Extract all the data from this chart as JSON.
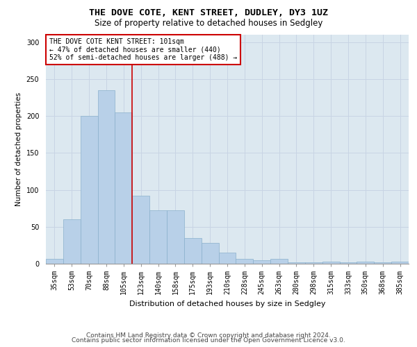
{
  "title": "THE DOVE COTE, KENT STREET, DUDLEY, DY3 1UZ",
  "subtitle": "Size of property relative to detached houses in Sedgley",
  "xlabel": "Distribution of detached houses by size in Sedgley",
  "ylabel": "Number of detached properties",
  "categories": [
    "35sqm",
    "53sqm",
    "70sqm",
    "88sqm",
    "105sqm",
    "123sqm",
    "140sqm",
    "158sqm",
    "175sqm",
    "193sqm",
    "210sqm",
    "228sqm",
    "245sqm",
    "263sqm",
    "280sqm",
    "298sqm",
    "315sqm",
    "333sqm",
    "350sqm",
    "368sqm",
    "385sqm"
  ],
  "values": [
    7,
    60,
    200,
    235,
    205,
    92,
    72,
    72,
    35,
    28,
    15,
    7,
    5,
    7,
    2,
    2,
    3,
    2,
    3,
    2,
    3
  ],
  "bar_color": "#b8d0e8",
  "bar_edge_color": "#8ab0cc",
  "red_line_index": 4,
  "annotation_line1": "THE DOVE COTE KENT STREET: 101sqm",
  "annotation_line2": "← 47% of detached houses are smaller (440)",
  "annotation_line3": "52% of semi-detached houses are larger (488) →",
  "annotation_box_facecolor": "#ffffff",
  "annotation_box_edgecolor": "#cc0000",
  "red_line_color": "#cc0000",
  "grid_color": "#c8d4e4",
  "background_color": "#dce8f0",
  "footer_line1": "Contains HM Land Registry data © Crown copyright and database right 2024.",
  "footer_line2": "Contains public sector information licensed under the Open Government Licence v3.0.",
  "ylim_max": 310,
  "yticks": [
    0,
    50,
    100,
    150,
    200,
    250,
    300
  ],
  "title_fontsize": 9.5,
  "subtitle_fontsize": 8.5,
  "xlabel_fontsize": 8,
  "ylabel_fontsize": 7.5,
  "tick_fontsize": 7,
  "annotation_fontsize": 7,
  "footer_fontsize": 6.5
}
